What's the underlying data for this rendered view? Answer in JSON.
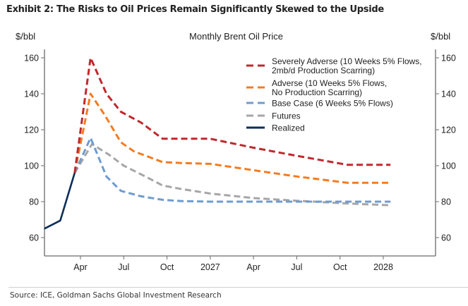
{
  "title": "Exhibit 2: The Risks to Oil Prices Remain Significantly Skewed to the Upside",
  "source": "Source: ICE, Goldman Sachs Global Investment Research",
  "chart_data": {
    "type": "line",
    "title": "Monthly Brent Oil Price",
    "ylabel_left": "$/bbl",
    "ylabel_right": "$/bbl",
    "xlabel": "",
    "ylim": [
      50,
      165
    ],
    "yticks": [
      60,
      80,
      100,
      120,
      140,
      160
    ],
    "x_units": "months since 2026-01-01",
    "xlim": [
      0.5,
      25.2
    ],
    "xticks": [
      {
        "label": "Apr",
        "x": 3
      },
      {
        "label": "Jul",
        "x": 6
      },
      {
        "label": "Oct",
        "x": 9
      },
      {
        "label": "2027",
        "x": 12
      },
      {
        "label": "Apr",
        "x": 15
      },
      {
        "label": "Jul",
        "x": 18
      },
      {
        "label": "Oct",
        "x": 21
      },
      {
        "label": "2028",
        "x": 24
      }
    ],
    "grid": false,
    "legend_position": "top-right",
    "series": [
      {
        "name": "Severely Adverse (10 Weeks 5% Flows, 2mb/d Production Scarring)",
        "legend_lines": [
          "Severely Adverse (10 Weeks 5% Flows,",
          "2mb/d Production Scarring)"
        ],
        "color": "#C0282D",
        "style": "dashed",
        "points": [
          [
            2.6,
            96
          ],
          [
            3.7,
            160
          ],
          [
            4.8,
            140
          ],
          [
            5.8,
            130
          ],
          [
            7.2,
            124
          ],
          [
            8.7,
            115
          ],
          [
            10,
            115
          ],
          [
            12,
            115
          ],
          [
            15,
            110
          ],
          [
            18,
            105.5
          ],
          [
            21.5,
            100.5
          ],
          [
            24.5,
            100.5
          ]
        ]
      },
      {
        "name": "Adverse (10 Weeks 5% Flows, No Production Scarring)",
        "legend_lines": [
          "Adverse (10 Weeks 5% Flows,",
          "No Production Scarring)"
        ],
        "color": "#F47B20",
        "style": "dashed",
        "points": [
          [
            2.6,
            96
          ],
          [
            3.7,
            140
          ],
          [
            4.7,
            128
          ],
          [
            5.8,
            113
          ],
          [
            6.7,
            108
          ],
          [
            8.7,
            102
          ],
          [
            10,
            101.5
          ],
          [
            12,
            101
          ],
          [
            15,
            97.5
          ],
          [
            18,
            94
          ],
          [
            21.5,
            90.5
          ],
          [
            24.5,
            90.5
          ]
        ]
      },
      {
        "name": "Base Case (6 Weeks 5% Flows)",
        "legend_lines": [
          "Base Case (6 Weeks 5% Flows)"
        ],
        "color": "#6F9BD1",
        "style": "dashed",
        "points": [
          [
            2.6,
            96
          ],
          [
            3.7,
            115.5
          ],
          [
            4.8,
            94
          ],
          [
            5.8,
            86
          ],
          [
            7.2,
            83
          ],
          [
            8.7,
            81
          ],
          [
            10,
            80.3
          ],
          [
            12,
            80
          ],
          [
            15,
            80
          ],
          [
            18,
            80
          ],
          [
            21.5,
            80
          ],
          [
            24.5,
            80
          ]
        ]
      },
      {
        "name": "Futures",
        "legend_lines": [
          "Futures"
        ],
        "color": "#A6A6A6",
        "style": "dashed",
        "points": [
          [
            2.6,
            96
          ],
          [
            3.8,
            112
          ],
          [
            5,
            106
          ],
          [
            6,
            100
          ],
          [
            7.5,
            94
          ],
          [
            8.7,
            89
          ],
          [
            10,
            87
          ],
          [
            12,
            84.5
          ],
          [
            15,
            82
          ],
          [
            18,
            80.5
          ],
          [
            21.5,
            79
          ],
          [
            24.5,
            78
          ]
        ]
      },
      {
        "name": "Realized",
        "legend_lines": [
          "Realized"
        ],
        "color": "#0B2E59",
        "style": "solid",
        "points": [
          [
            0.5,
            65
          ],
          [
            1.6,
            69.5
          ],
          [
            2.6,
            96
          ]
        ]
      }
    ]
  }
}
